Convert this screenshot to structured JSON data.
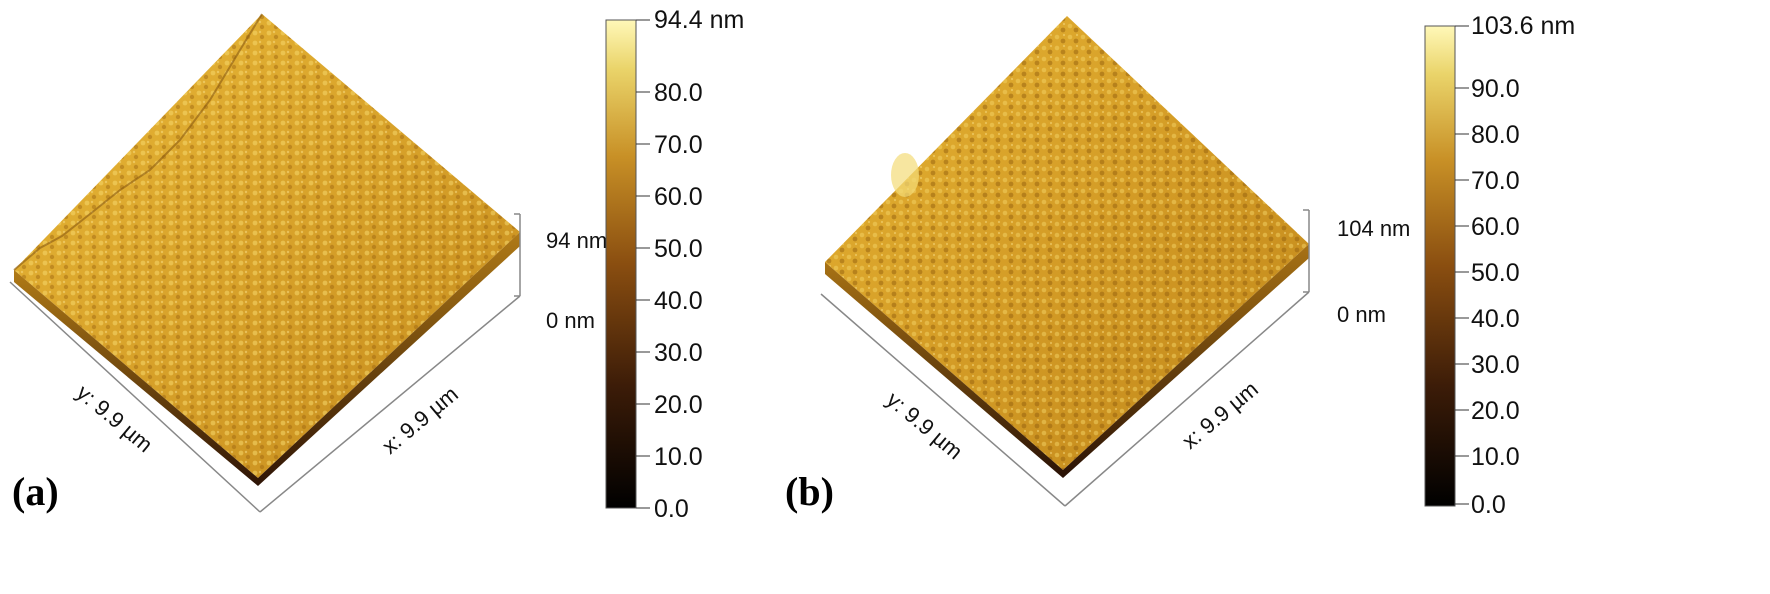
{
  "panels": [
    {
      "label": "(a)",
      "axes": {
        "x": "x: 9.9 µm",
        "y": "y: 9.9 µm",
        "z_top": "94 nm",
        "z_bottom": "0 nm"
      },
      "colorbar": {
        "max_label": "94.4 nm",
        "ticks": [
          "80.0",
          "70.0",
          "60.0",
          "50.0",
          "40.0",
          "30.0",
          "20.0",
          "10.0",
          "0.0"
        ]
      }
    },
    {
      "label": "(b)",
      "axes": {
        "x": "x: 9.9 µm",
        "y": "y: 9.9 µm",
        "z_top": "104 nm",
        "z_bottom": "0 nm"
      },
      "colorbar": {
        "max_label": "103.6 nm",
        "ticks": [
          "90.0",
          "80.0",
          "70.0",
          "60.0",
          "50.0",
          "40.0",
          "30.0",
          "20.0",
          "10.0",
          "0.0"
        ]
      }
    }
  ],
  "colors": {
    "surface_light": "#f0c84a",
    "surface_mid": "#c98f1c",
    "surface_dark": "#3a1a06",
    "colorbar_top": "#fff7b0",
    "colorbar_bottom": "#000000"
  }
}
